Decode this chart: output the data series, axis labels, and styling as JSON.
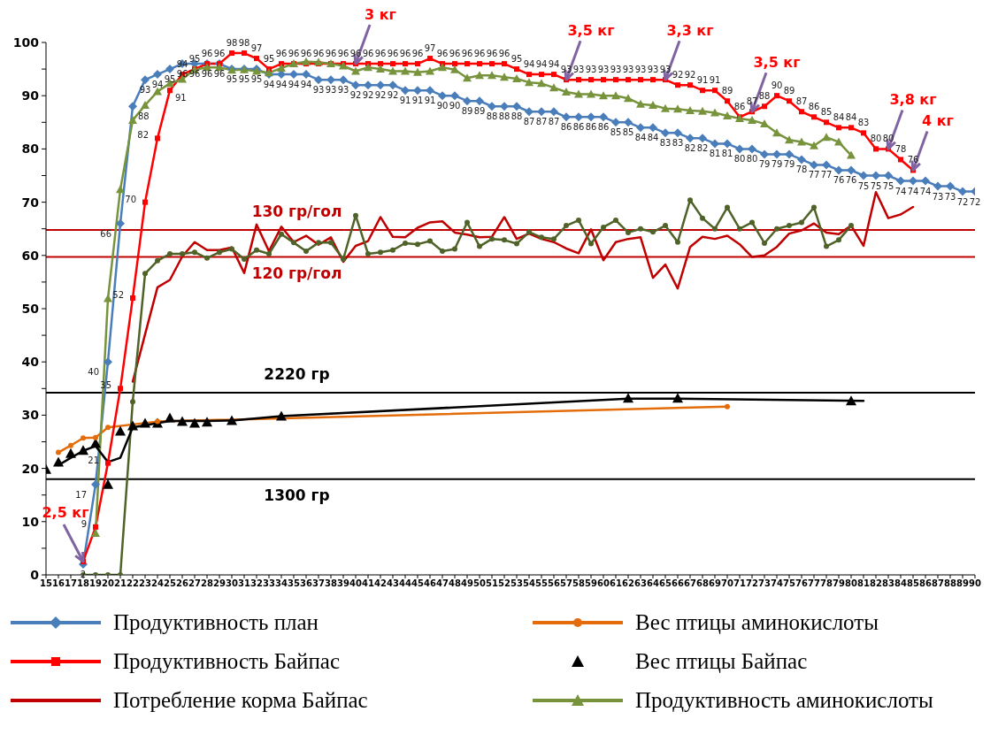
{
  "chart_data": {
    "type": "line",
    "xlim": [
      15,
      90
    ],
    "xticks": [
      15,
      16,
      17,
      18,
      19,
      20,
      21,
      22,
      23,
      24,
      25,
      26,
      27,
      28,
      29,
      30,
      31,
      32,
      33,
      34,
      35,
      36,
      37,
      38,
      39,
      40,
      41,
      42,
      43,
      44,
      45,
      46,
      47,
      48,
      49,
      50,
      51,
      52,
      53,
      54,
      55,
      56,
      57,
      58,
      59,
      60,
      61,
      62,
      63,
      64,
      65,
      66,
      67,
      68,
      69,
      70,
      71,
      72,
      73,
      74,
      75,
      76,
      77,
      78,
      79,
      80,
      81,
      82,
      83,
      84,
      85,
      86,
      87,
      88,
      89,
      90
    ],
    "ylim": [
      0,
      100
    ],
    "yticks": [
      0,
      {
        "value": 5,
        "label": null
      },
      10,
      {
        "value": 15,
        "label": null
      },
      20,
      {
        "value": 25,
        "label": null
      },
      30,
      {
        "value": 35,
        "label": null
      },
      40,
      {
        "value": 45,
        "label": null
      },
      50,
      {
        "value": 55,
        "label": null
      },
      60,
      {
        "value": 65,
        "label": null
      },
      70,
      {
        "value": 75,
        "label": null
      },
      80,
      {
        "value": 85,
        "label": null
      },
      90,
      {
        "value": 95,
        "label": null
      },
      100
    ],
    "legend": "bottom",
    "series": [
      {
        "name": "Продуктивность план",
        "color": "#4a7ebb",
        "marker": "diamond",
        "x": [
          18,
          19,
          20,
          21,
          22,
          23,
          24,
          25,
          26,
          27,
          28,
          29,
          30,
          31,
          32,
          33,
          34,
          35,
          36,
          37,
          38,
          39,
          40,
          41,
          42,
          43,
          44,
          45,
          46,
          47,
          48,
          49,
          50,
          51,
          52,
          53,
          54,
          55,
          56,
          57,
          58,
          59,
          60,
          61,
          62,
          63,
          64,
          65,
          66,
          67,
          68,
          69,
          70,
          71,
          72,
          73,
          74,
          75,
          76,
          77,
          78,
          79,
          80,
          81,
          82,
          83,
          84,
          85,
          86,
          87,
          88,
          89,
          90
        ],
        "values": [
          2,
          17,
          40,
          66,
          88,
          93,
          94,
          95,
          96,
          96,
          96,
          96,
          95,
          95,
          95,
          94,
          94,
          94,
          94,
          93,
          93,
          93,
          92,
          92,
          92,
          92,
          91,
          91,
          91,
          90,
          90,
          89,
          89,
          88,
          88,
          88,
          87,
          87,
          87,
          86,
          86,
          86,
          86,
          85,
          85,
          84,
          84,
          83,
          83,
          82,
          82,
          81,
          81,
          80,
          80,
          79,
          79,
          79,
          78,
          77,
          77,
          76,
          76,
          75,
          75,
          75,
          74,
          74,
          74,
          73,
          73,
          72,
          72
        ],
        "value_labels": [
          "2",
          "17",
          "40",
          "66",
          "88",
          "93",
          "94",
          "95",
          "96",
          "96",
          "96",
          "96",
          "95",
          "95",
          "95",
          "94",
          "94",
          "94",
          "94",
          "93",
          "93",
          "93",
          "92",
          "92",
          "92",
          "92",
          "91",
          "91",
          "91",
          "90",
          "90",
          "89",
          "89",
          "88",
          "88",
          "88",
          "87",
          "87",
          "87",
          "86",
          "86",
          "86",
          "86",
          "85",
          "85",
          "84",
          "84",
          "83",
          "83",
          "82",
          "82",
          "81",
          "81",
          "80",
          "80",
          "79",
          "79",
          "79",
          "78",
          "77",
          "77",
          "76",
          "76",
          "75",
          "75",
          "75",
          "74",
          "74",
          "74",
          "73",
          "73",
          "72",
          "72"
        ]
      },
      {
        "name": "Вес птицы аминокислоты",
        "color": "#e46c0a",
        "marker": "circle",
        "x": [
          16,
          17,
          18,
          19,
          20,
          24,
          70
        ],
        "values": [
          23,
          24.3,
          25.7,
          25.8,
          27.7,
          28.8,
          31.6
        ]
      },
      {
        "name": "Продуктивность Байпас",
        "color": "#ff0000",
        "marker": "square",
        "x": [
          18,
          19,
          20,
          21,
          22,
          23,
          24,
          25,
          26,
          27,
          28,
          29,
          30,
          31,
          32,
          33,
          34,
          35,
          36,
          37,
          38,
          39,
          40,
          41,
          42,
          43,
          44,
          45,
          46,
          47,
          48,
          49,
          50,
          51,
          52,
          53,
          54,
          55,
          56,
          57,
          58,
          59,
          60,
          61,
          62,
          63,
          64,
          65,
          66,
          67,
          68,
          69,
          70,
          71,
          72,
          73,
          74,
          75,
          76,
          77,
          78,
          79,
          80,
          81,
          82,
          83,
          84,
          85
        ],
        "values": [
          2.5,
          9,
          21,
          35,
          52,
          70,
          82,
          91,
          94,
          95,
          96,
          96,
          98,
          98,
          97,
          95,
          96,
          96,
          96,
          96,
          96,
          96,
          96,
          96,
          96,
          96,
          96,
          96,
          97,
          96,
          96,
          96,
          96,
          96,
          96,
          95,
          94,
          94,
          94,
          93,
          93,
          93,
          93,
          93,
          93,
          93,
          93,
          93,
          92,
          92,
          91,
          91,
          89,
          86,
          87,
          88,
          90,
          89,
          87,
          86,
          85,
          84,
          84,
          83,
          80,
          80,
          78,
          76
        ],
        "value_labels": [
          null,
          "9",
          "21",
          "35",
          "52",
          "70",
          "82",
          "91",
          "94",
          "95",
          "96",
          "96",
          "98",
          "98",
          "97",
          "95",
          "96",
          "96",
          "96",
          "96",
          "96",
          "96",
          "96",
          "96",
          "96",
          "96",
          "96",
          "96",
          "97",
          "96",
          "96",
          "96",
          "96",
          "96",
          "96",
          "95",
          "94",
          "94",
          "94",
          "93",
          "93",
          "93",
          "93",
          "93",
          "93",
          "93",
          "93",
          "93",
          "92",
          "92",
          "91",
          "91",
          "89",
          "86",
          "87",
          "88",
          "90",
          "89",
          "87",
          "86",
          "85",
          "84",
          "84",
          "83",
          "80",
          "80",
          "78",
          "76"
        ]
      },
      {
        "name": "Вес птицы Байпас",
        "type": "scatter",
        "color": "#000000",
        "marker": "triangle",
        "x": [
          15,
          16,
          17,
          18,
          19,
          20,
          21,
          22,
          23,
          24,
          25,
          26,
          27,
          28,
          30,
          34,
          62,
          66,
          80
        ],
        "values": [
          19.8,
          21.2,
          22.8,
          23.4,
          24.7,
          17.0,
          27.0,
          28.0,
          28.5,
          28.5,
          29.5,
          28.8,
          28.5,
          28.7,
          29.0,
          29.8,
          33.2,
          33.2,
          32.7
        ]
      },
      {
        "name": "Потребление корма Байпас",
        "color": "#c00000",
        "marker": "none",
        "x": [
          22,
          23,
          24,
          25,
          26,
          27,
          28,
          29,
          30,
          31,
          32,
          33,
          34,
          35,
          36,
          37,
          38,
          39,
          40,
          41,
          42,
          43,
          44,
          45,
          46,
          47,
          48,
          49,
          50,
          51,
          52,
          53,
          54,
          55,
          56,
          57,
          58,
          59,
          60,
          61,
          62,
          63,
          64,
          65,
          66,
          67,
          68,
          69,
          70,
          71,
          72,
          73,
          74,
          75,
          76,
          77,
          78,
          79,
          80,
          81,
          82,
          83,
          84,
          85
        ],
        "values": [
          36.3,
          45.2,
          54.0,
          55.4,
          59.8,
          62.5,
          61.0,
          61.0,
          61.5,
          56.7,
          65.8,
          60.8,
          65.4,
          62.5,
          63.7,
          62.0,
          63.4,
          58.8,
          61.8,
          62.7,
          67.2,
          63.5,
          63.4,
          65.2,
          66.2,
          66.4,
          64.3,
          63.9,
          63.4,
          63.5,
          67.2,
          63.1,
          64.1,
          63.1,
          62.5,
          61.3,
          60.4,
          64.9,
          59.1,
          62.5,
          63.1,
          63.4,
          55.8,
          58.3,
          53.8,
          61.6,
          63.5,
          63.1,
          63.7,
          62.1,
          59.7,
          60.0,
          61.6,
          64.1,
          64.7,
          66.0,
          64.3,
          64.0,
          65.6,
          61.8,
          71.9,
          67.0,
          67.7,
          69.1
        ]
      },
      {
        "name": "Продуктивность аминокислоты",
        "color": "#77933c",
        "marker": "triangle",
        "x": [
          19,
          20,
          21,
          22,
          23,
          24,
          25,
          26,
          27,
          28,
          29,
          30,
          31,
          32,
          33,
          34,
          35,
          36,
          37,
          38,
          39,
          40,
          41,
          42,
          43,
          44,
          45,
          46,
          47,
          48,
          49,
          50,
          51,
          52,
          53,
          54,
          55,
          56,
          57,
          58,
          59,
          60,
          61,
          62,
          63,
          64,
          65,
          66,
          67,
          68,
          69,
          70,
          71,
          72,
          73,
          74,
          75,
          76,
          77,
          78,
          79,
          80
        ],
        "values": [
          7.8,
          51.9,
          72.4,
          85.4,
          88.2,
          90.8,
          92.3,
          93.1,
          94.9,
          95.3,
          95.3,
          94.8,
          94.9,
          94.6,
          94.3,
          95.2,
          96.0,
          96.4,
          96.3,
          96.0,
          95.6,
          94.6,
          95.3,
          95.0,
          94.6,
          94.6,
          94.4,
          94.6,
          95.3,
          94.9,
          93.3,
          93.8,
          93.8,
          93.5,
          93.2,
          92.5,
          92.3,
          91.5,
          90.7,
          90.3,
          90.3,
          90.0,
          90.0,
          89.5,
          88.4,
          88.2,
          87.6,
          87.5,
          87.2,
          87.1,
          86.8,
          86.2,
          85.7,
          85.4,
          84.7,
          83.0,
          81.7,
          81.3,
          80.6,
          82.2,
          81.3,
          78.8
        ]
      },
      {
        "color": "#4f6228",
        "marker": "circle",
        "x": [
          18,
          19,
          20,
          21,
          22,
          23,
          24,
          25,
          26,
          27,
          28,
          29,
          30,
          31,
          32,
          33,
          34,
          35,
          36,
          37,
          38,
          39,
          40,
          41,
          42,
          43,
          44,
          45,
          46,
          47,
          48,
          49,
          50,
          51,
          52,
          53,
          54,
          55,
          56,
          57,
          58,
          59,
          60,
          61,
          62,
          63,
          64,
          65,
          66,
          67,
          68,
          69,
          70,
          71,
          72,
          73,
          74,
          75,
          76,
          77,
          78,
          79,
          80
        ],
        "values": [
          0,
          0,
          0,
          0,
          32.5,
          56.6,
          59.0,
          60.3,
          60.3,
          60.6,
          59.5,
          60.6,
          61.2,
          59.3,
          61.0,
          60.3,
          64.0,
          62.4,
          60.8,
          62.4,
          62.4,
          59.3,
          67.5,
          60.3,
          60.6,
          61.0,
          62.3,
          62.1,
          62.7,
          60.8,
          61.2,
          66.2,
          61.7,
          63.1,
          62.9,
          62.2,
          64.4,
          63.4,
          63.1,
          65.6,
          66.6,
          62.2,
          65.3,
          66.6,
          64.3,
          65.0,
          64.4,
          65.6,
          62.5,
          70.4,
          67.0,
          65.0,
          69.0,
          65.0,
          66.2,
          62.3,
          65.0,
          65.6,
          66.2,
          69.0,
          61.7,
          62.9,
          65.6
        ]
      },
      {
        "color": "#000000",
        "marker": "none",
        "x": [
          16,
          17,
          18,
          19,
          20,
          21,
          22,
          25,
          28,
          30,
          34,
          62,
          66,
          81
        ],
        "values": [
          20.6,
          22.0,
          23.3,
          24.2,
          21.2,
          22.0,
          27.7,
          28.9,
          28.9,
          29.0,
          29.8,
          33.1,
          33.1,
          32.7
        ]
      }
    ],
    "ref_lines": [
      {
        "axis": "y",
        "value": 64.8,
        "label": "130 гр/гол",
        "color": "#c00000"
      },
      {
        "axis": "y",
        "value": 59.7,
        "label": "120 гр/гол",
        "color": "#c00000"
      },
      {
        "axis": "y",
        "value": 34.2,
        "label": "2220 гр",
        "color": "#000000"
      },
      {
        "axis": "y",
        "value": 18.0,
        "label": "1300 гр",
        "color": "#000000"
      }
    ],
    "annotations": [
      {
        "text": "2,5 кг",
        "x": 18,
        "y": 2.5
      },
      {
        "text": "3 кг",
        "x": 40,
        "y": 96
      },
      {
        "text": "3,5 кг",
        "x": 57,
        "y": 93
      },
      {
        "text": "3,3 кг",
        "x": 65,
        "y": 93
      },
      {
        "text": "3,5 кг",
        "x": 72,
        "y": 87
      },
      {
        "text": "3,8 кг",
        "x": 83,
        "y": 80
      },
      {
        "text": "4 кг",
        "x": 85,
        "y": 76
      }
    ]
  }
}
